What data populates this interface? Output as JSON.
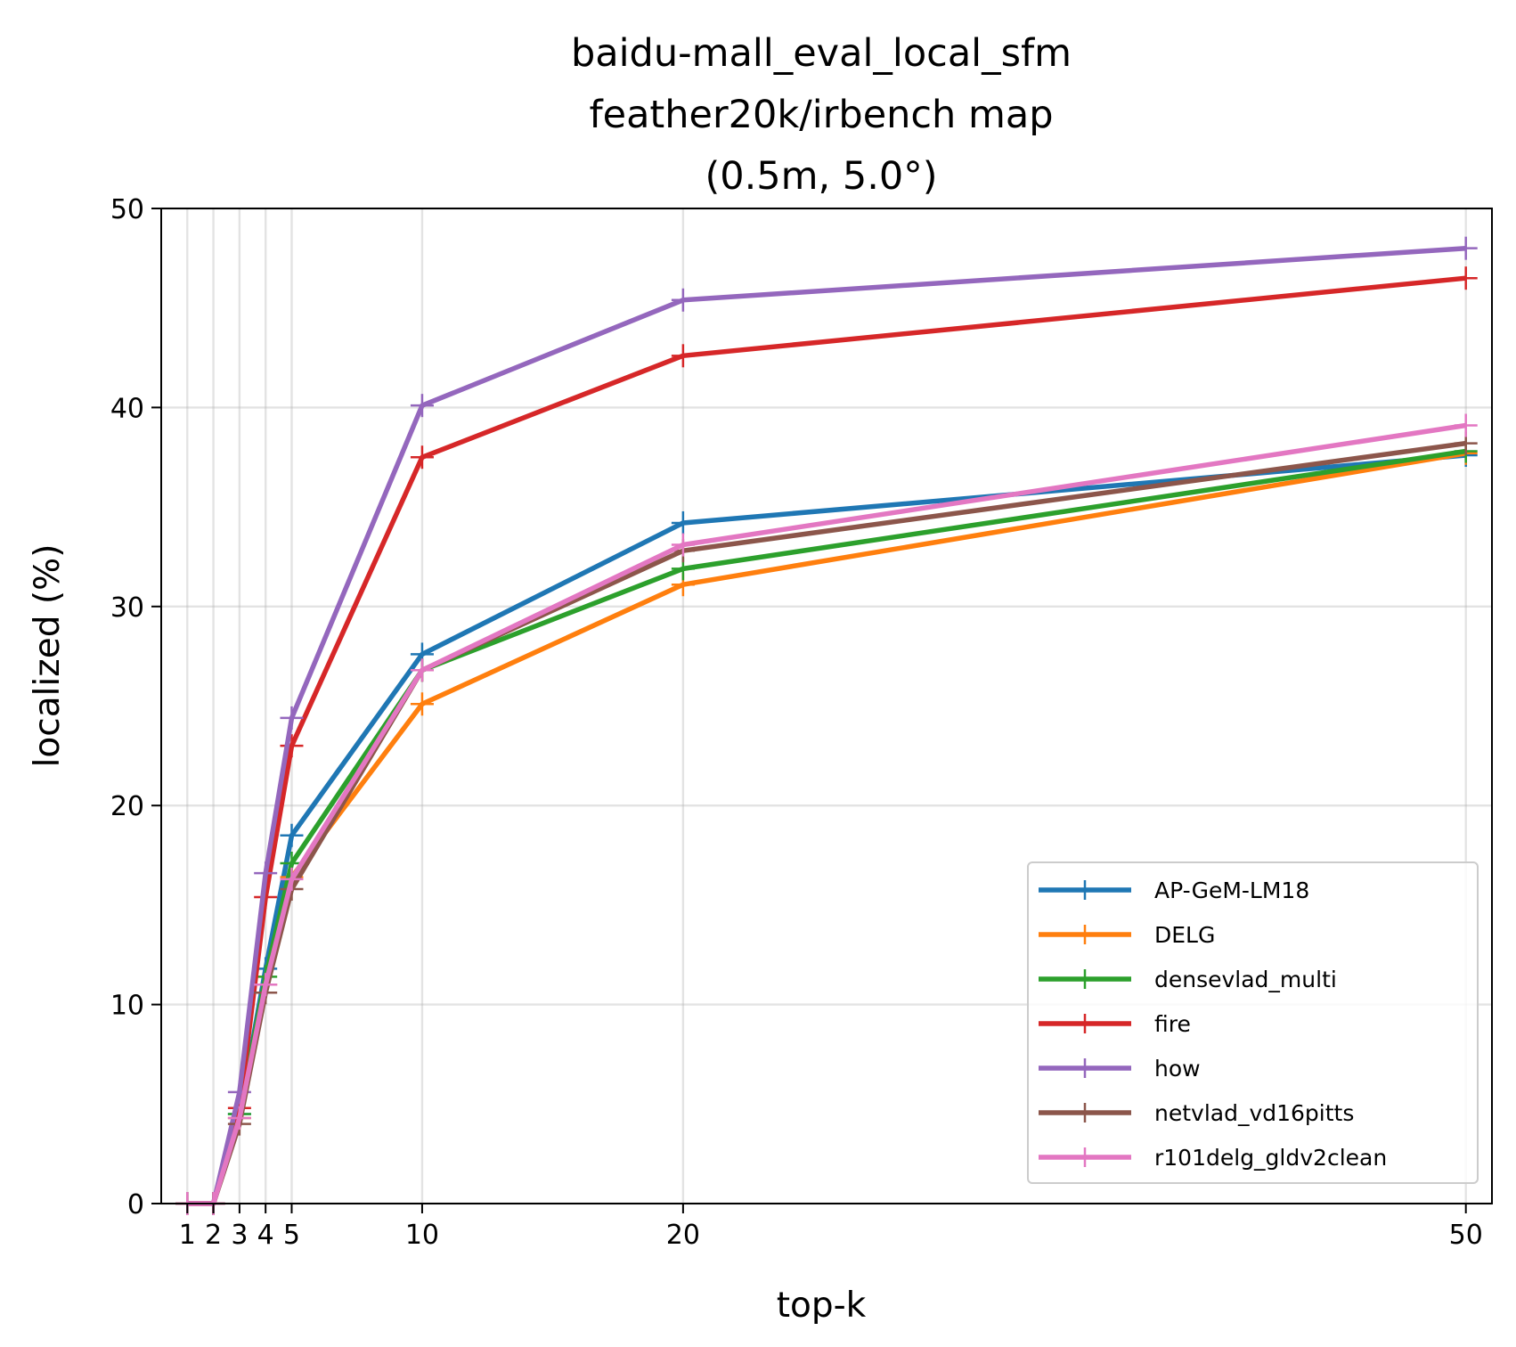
{
  "chart_data": {
    "type": "line",
    "title_lines": [
      "baidu-mall_eval_local_sfm",
      "feather20k/irbench map",
      "(0.5m, 5.0°)"
    ],
    "xlabel": "top-k",
    "ylabel": "localized (%)",
    "x": [
      1,
      2,
      3,
      4,
      5,
      10,
      20,
      50
    ],
    "xticks": [
      1,
      2,
      3,
      4,
      5,
      10,
      20,
      50
    ],
    "yticks": [
      0,
      10,
      20,
      30,
      40,
      50
    ],
    "xlim": [
      0,
      51
    ],
    "ylim": [
      0,
      50
    ],
    "grid": true,
    "legend_position": "lower-right",
    "series": [
      {
        "name": "AP-GeM-LM18",
        "color": "#1f77b4",
        "values": [
          0,
          0,
          4.5,
          11.8,
          18.5,
          27.6,
          34.2,
          37.6
        ]
      },
      {
        "name": "DELG",
        "color": "#ff7f0e",
        "values": [
          0,
          0,
          4.3,
          11.0,
          16.4,
          25.1,
          31.1,
          37.7
        ]
      },
      {
        "name": "densevlad_multi",
        "color": "#2ca02c",
        "values": [
          0,
          0,
          4.5,
          11.4,
          17.1,
          26.8,
          31.9,
          37.8
        ]
      },
      {
        "name": "fire",
        "color": "#d62728",
        "values": [
          0,
          0,
          4.8,
          15.4,
          23.0,
          37.5,
          42.6,
          46.5
        ]
      },
      {
        "name": "how",
        "color": "#9467bd",
        "values": [
          0,
          0,
          5.6,
          16.6,
          24.4,
          40.1,
          45.4,
          48.0
        ]
      },
      {
        "name": "netvlad_vd16pitts",
        "color": "#8c564b",
        "values": [
          0,
          0,
          4.0,
          10.6,
          15.8,
          26.8,
          32.8,
          38.2
        ]
      },
      {
        "name": "r101delg_gldv2clean",
        "color": "#e377c2",
        "values": [
          0,
          0,
          4.3,
          11.0,
          16.3,
          26.8,
          33.1,
          39.1
        ]
      }
    ]
  }
}
